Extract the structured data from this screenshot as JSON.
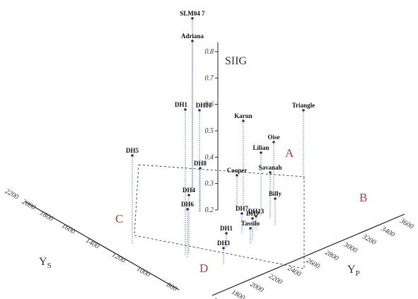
{
  "chart_data": {
    "type": "scatter",
    "title": "",
    "z_axis_label": "SIIG",
    "x_axis_label": "Y_P",
    "y_axis_label": "Y_S",
    "x_ticks": [
      "1600",
      "1800",
      "2000",
      "2200",
      "2400",
      "2600",
      "2800",
      "3000",
      "3200",
      "3400",
      "3600"
    ],
    "y_ticks": [
      "800",
      "1000",
      "1200",
      "1400",
      "1600",
      "1800",
      "2000",
      "2200"
    ],
    "z_ticks": [
      "0.2",
      "0.3",
      "0.4",
      "0.5",
      "0.6",
      "0.7",
      "0.8"
    ],
    "zones": [
      "A",
      "B",
      "C",
      "D"
    ],
    "points": [
      {
        "name": "SLM04 7",
        "siig": 0.91
      },
      {
        "name": "Adriana",
        "siig": 0.82
      },
      {
        "name": "DH1",
        "siig": 0.58
      },
      {
        "name": "DH10",
        "siig": 0.58
      },
      {
        "name": "Triangle",
        "siig": 0.56
      },
      {
        "name": "Karun",
        "siig": 0.55
      },
      {
        "name": "Oise",
        "siig": 0.48
      },
      {
        "name": "Lilian",
        "siig": 0.43
      },
      {
        "name": "DH5",
        "siig": 0.42
      },
      {
        "name": "DH8",
        "siig": 0.39
      },
      {
        "name": "Savanah",
        "siig": 0.36
      },
      {
        "name": "Cooper",
        "siig": 0.35
      },
      {
        "name": "DH4",
        "siig": 0.25
      },
      {
        "name": "Billy",
        "siig": 0.23
      },
      {
        "name": "DH6",
        "siig": 0.22
      },
      {
        "name": "DH7",
        "siig": 0.18
      },
      {
        "name": "DH13",
        "siig": 0.17
      },
      {
        "name": "DH9",
        "siig": 0.16
      },
      {
        "name": "Tassilo",
        "siig": 0.13
      },
      {
        "name": "DH1",
        "siig": 0.11
      },
      {
        "name": "DH3",
        "siig": 0.07
      }
    ]
  }
}
